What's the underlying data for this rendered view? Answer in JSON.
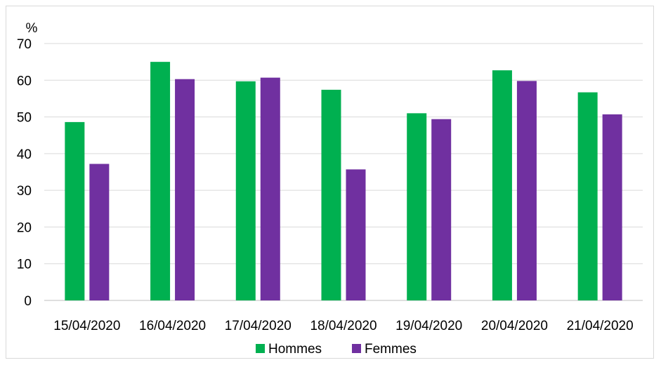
{
  "chart_data": {
    "type": "bar",
    "ylabel": "%",
    "ylim": [
      0,
      70
    ],
    "yticks": [
      "0",
      "10",
      "20",
      "30",
      "40",
      "50",
      "60",
      "70"
    ],
    "categories": [
      "15/04/2020",
      "16/04/2020",
      "17/04/2020",
      "18/04/2020",
      "19/04/2020",
      "20/04/2020",
      "21/04/2020"
    ],
    "series": [
      {
        "name": "Hommes",
        "color": "#00b050",
        "values": [
          48.6,
          65.0,
          59.7,
          57.4,
          51.0,
          62.7,
          56.7
        ]
      },
      {
        "name": "Femmes",
        "color": "#7030a0",
        "values": [
          37.2,
          60.3,
          60.7,
          35.7,
          49.4,
          59.8,
          50.7
        ]
      }
    ],
    "grid": true,
    "legend": "bottom"
  }
}
